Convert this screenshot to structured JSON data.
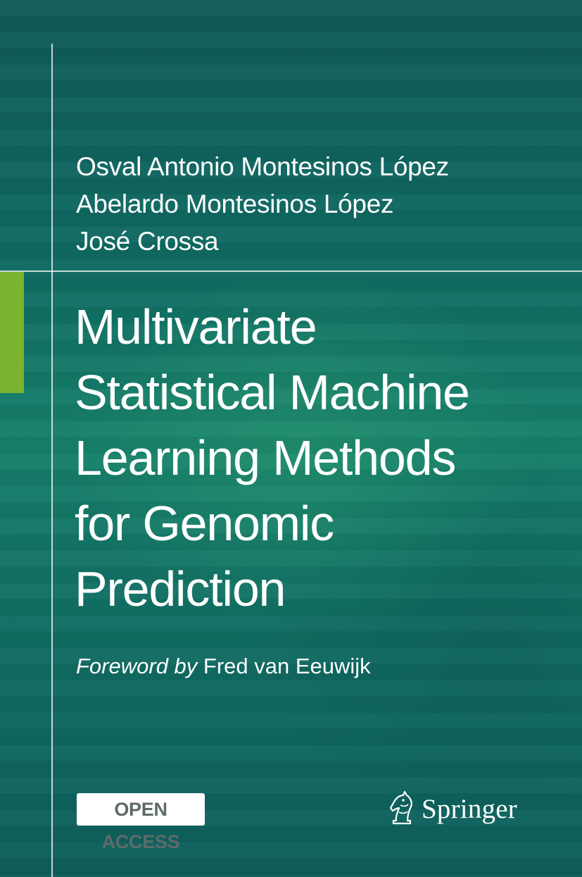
{
  "authors": [
    "Osval Antonio Montesinos López",
    "Abelardo Montesinos López",
    "José Crossa"
  ],
  "title_lines": [
    "Multivariate",
    "Statistical Machine",
    "Learning Methods",
    "for Genomic",
    "Prediction"
  ],
  "foreword": {
    "prefix": "Foreword by",
    "name": " Fred van Eeuwijk"
  },
  "badge": "OPEN ACCESS",
  "publisher": {
    "name": "Springer",
    "logo_icon": "chess-knight-icon"
  },
  "colors": {
    "background": "#0f6a62",
    "accent_green": "#7ab32e",
    "text": "#ffffff"
  }
}
